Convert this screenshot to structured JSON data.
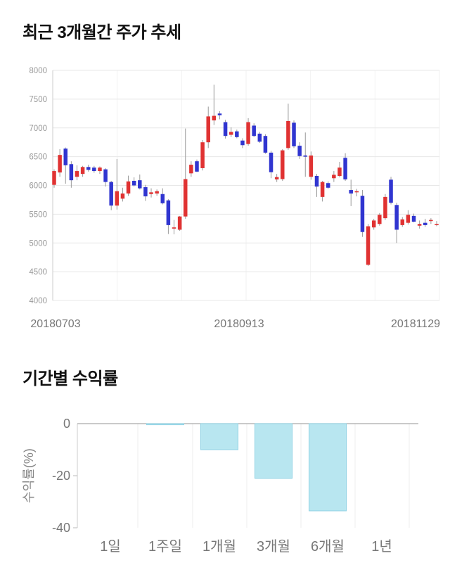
{
  "page": {
    "background": "#ffffff"
  },
  "chart_data": [
    {
      "type": "candlestick",
      "title": "최근 3개월간 주가 추세",
      "x_tick_labels": [
        "20180703",
        "20180913",
        "20181129"
      ],
      "y_ticks": [
        8000,
        7500,
        7000,
        6500,
        6000,
        5500,
        5000,
        4500,
        4000
      ],
      "ylim": [
        4000,
        8000
      ],
      "grid": true,
      "up_color": "#e03232",
      "down_color": "#3035d0",
      "wick_color": "#999999",
      "candles_ohlc": [
        [
          6010,
          6280,
          5960,
          6250
        ],
        [
          6225,
          6630,
          6150,
          6530
        ],
        [
          6640,
          6660,
          6030,
          6350
        ],
        [
          6370,
          6420,
          5960,
          6090
        ],
        [
          6150,
          6350,
          6090,
          6250
        ],
        [
          6200,
          6340,
          6150,
          6320
        ],
        [
          6320,
          6360,
          6240,
          6270
        ],
        [
          6310,
          6340,
          6220,
          6250
        ],
        [
          6250,
          6330,
          6200,
          6310
        ],
        [
          6280,
          6300,
          5980,
          6060
        ],
        [
          6060,
          6080,
          5570,
          5650
        ],
        [
          5650,
          6460,
          5580,
          5900
        ],
        [
          5770,
          5960,
          5720,
          5860
        ],
        [
          5860,
          6170,
          5820,
          6070
        ],
        [
          6080,
          6140,
          5980,
          6000
        ],
        [
          6090,
          6190,
          5930,
          5950
        ],
        [
          5970,
          6010,
          5730,
          5810
        ],
        [
          5850,
          5950,
          5790,
          5880
        ],
        [
          5860,
          5930,
          5820,
          5900
        ],
        [
          5850,
          5950,
          5670,
          5690
        ],
        [
          5740,
          5760,
          5155,
          5310
        ],
        [
          5250,
          5400,
          5150,
          5270
        ],
        [
          5230,
          5470,
          5210,
          5460
        ],
        [
          5460,
          6990,
          5420,
          6110
        ],
        [
          6210,
          6420,
          6150,
          6360
        ],
        [
          6420,
          6450,
          6230,
          6240
        ],
        [
          6300,
          6790,
          6260,
          6750
        ],
        [
          6750,
          7370,
          6650,
          7200
        ],
        [
          7130,
          7750,
          7050,
          7210
        ],
        [
          7250,
          7290,
          7150,
          7220
        ],
        [
          7100,
          7140,
          6815,
          6860
        ],
        [
          6880,
          7010,
          6840,
          6930
        ],
        [
          6940,
          6970,
          6820,
          6840
        ],
        [
          6780,
          6820,
          6650,
          6700
        ],
        [
          6720,
          7170,
          6690,
          7100
        ],
        [
          7040,
          7080,
          6840,
          6860
        ],
        [
          6900,
          6930,
          6740,
          6760
        ],
        [
          6860,
          6890,
          6550,
          6570
        ],
        [
          6570,
          6600,
          6125,
          6230
        ],
        [
          6105,
          6200,
          6060,
          6145
        ],
        [
          6110,
          6630,
          6080,
          6610
        ],
        [
          6650,
          7420,
          6620,
          7120
        ],
        [
          7090,
          7130,
          6650,
          6680
        ],
        [
          6690,
          6750,
          6460,
          6510
        ],
        [
          6520,
          6920,
          6150,
          6500
        ],
        [
          6150,
          6590,
          6100,
          6520
        ],
        [
          6165,
          6200,
          5800,
          5980
        ],
        [
          5800,
          6080,
          5720,
          6060
        ],
        [
          6040,
          6070,
          5940,
          5960
        ],
        [
          6125,
          6250,
          6060,
          6185
        ],
        [
          6165,
          6410,
          6140,
          6310
        ],
        [
          6480,
          6560,
          6080,
          6105
        ],
        [
          5920,
          6100,
          5640,
          5860
        ],
        [
          5880,
          5940,
          5810,
          5900
        ],
        [
          5820,
          5920,
          5105,
          5190
        ],
        [
          4620,
          5330,
          4600,
          5290
        ],
        [
          5270,
          5420,
          5230,
          5390
        ],
        [
          5330,
          5520,
          5300,
          5490
        ],
        [
          5430,
          5850,
          5400,
          5800
        ],
        [
          6100,
          6150,
          5670,
          5700
        ],
        [
          5660,
          5700,
          5000,
          5230
        ],
        [
          5310,
          5450,
          5280,
          5410
        ],
        [
          5350,
          5570,
          5320,
          5490
        ],
        [
          5470,
          5510,
          5360,
          5370
        ],
        [
          5300,
          5390,
          5250,
          5330
        ],
        [
          5350,
          5420,
          5280,
          5310
        ],
        [
          5380,
          5430,
          5330,
          5400
        ],
        [
          5330,
          5380,
          5290,
          5330
        ]
      ]
    },
    {
      "type": "bar",
      "title": "기간별 수익률",
      "ylabel": "수익률(%)",
      "categories": [
        "1일",
        "1주일",
        "1개월",
        "3개월",
        "6개월",
        "1년"
      ],
      "values": [
        0,
        -0.2,
        -10,
        -21,
        -33.5,
        0
      ],
      "y_ticks": [
        0,
        -20,
        -40
      ],
      "ylim": [
        -40,
        0
      ],
      "legend": false,
      "bar_color": "#b8e6f0",
      "bar_border": "#8fd2e4"
    }
  ]
}
